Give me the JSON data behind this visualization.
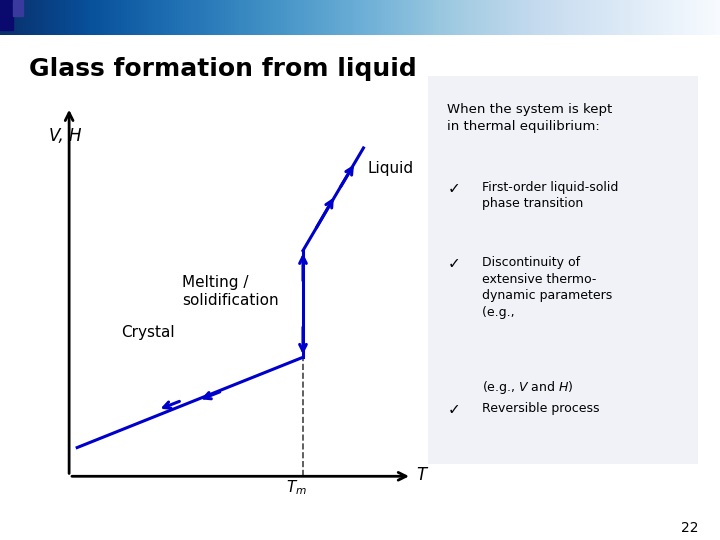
{
  "title": "Glass formation from liquid",
  "title_fontsize": 18,
  "background_color": "#ffffff",
  "vh_label": "V, H",
  "t_label": "T",
  "tm_label": "$T_m$",
  "liquid_label": "Liquid",
  "crystal_label": "Crystal",
  "melting_label": "Melting /\nsolidification",
  "line_color": "#0000cc",
  "axis_color": "#000000",
  "box_text_title": "When the system is kept\nin thermal equilibrium:",
  "box_bullet1": "First-order liquid-solid\nphase transition",
  "box_bullet2": "Discontinuity of\nextensive thermo-\ndynamic parameters\n(e.g., ",
  "box_bullet2b": "V",
  "box_bullet2c": " and ",
  "box_bullet2d": "H",
  "box_bullet2e": ")",
  "box_bullet3": "Reversible process",
  "box_facecolor": "#f0f2f8",
  "box_edgecolor": "#7788bb",
  "page_number": "22",
  "header_color_left": "#1a1a8c",
  "header_color_right": "#e8e8f0"
}
